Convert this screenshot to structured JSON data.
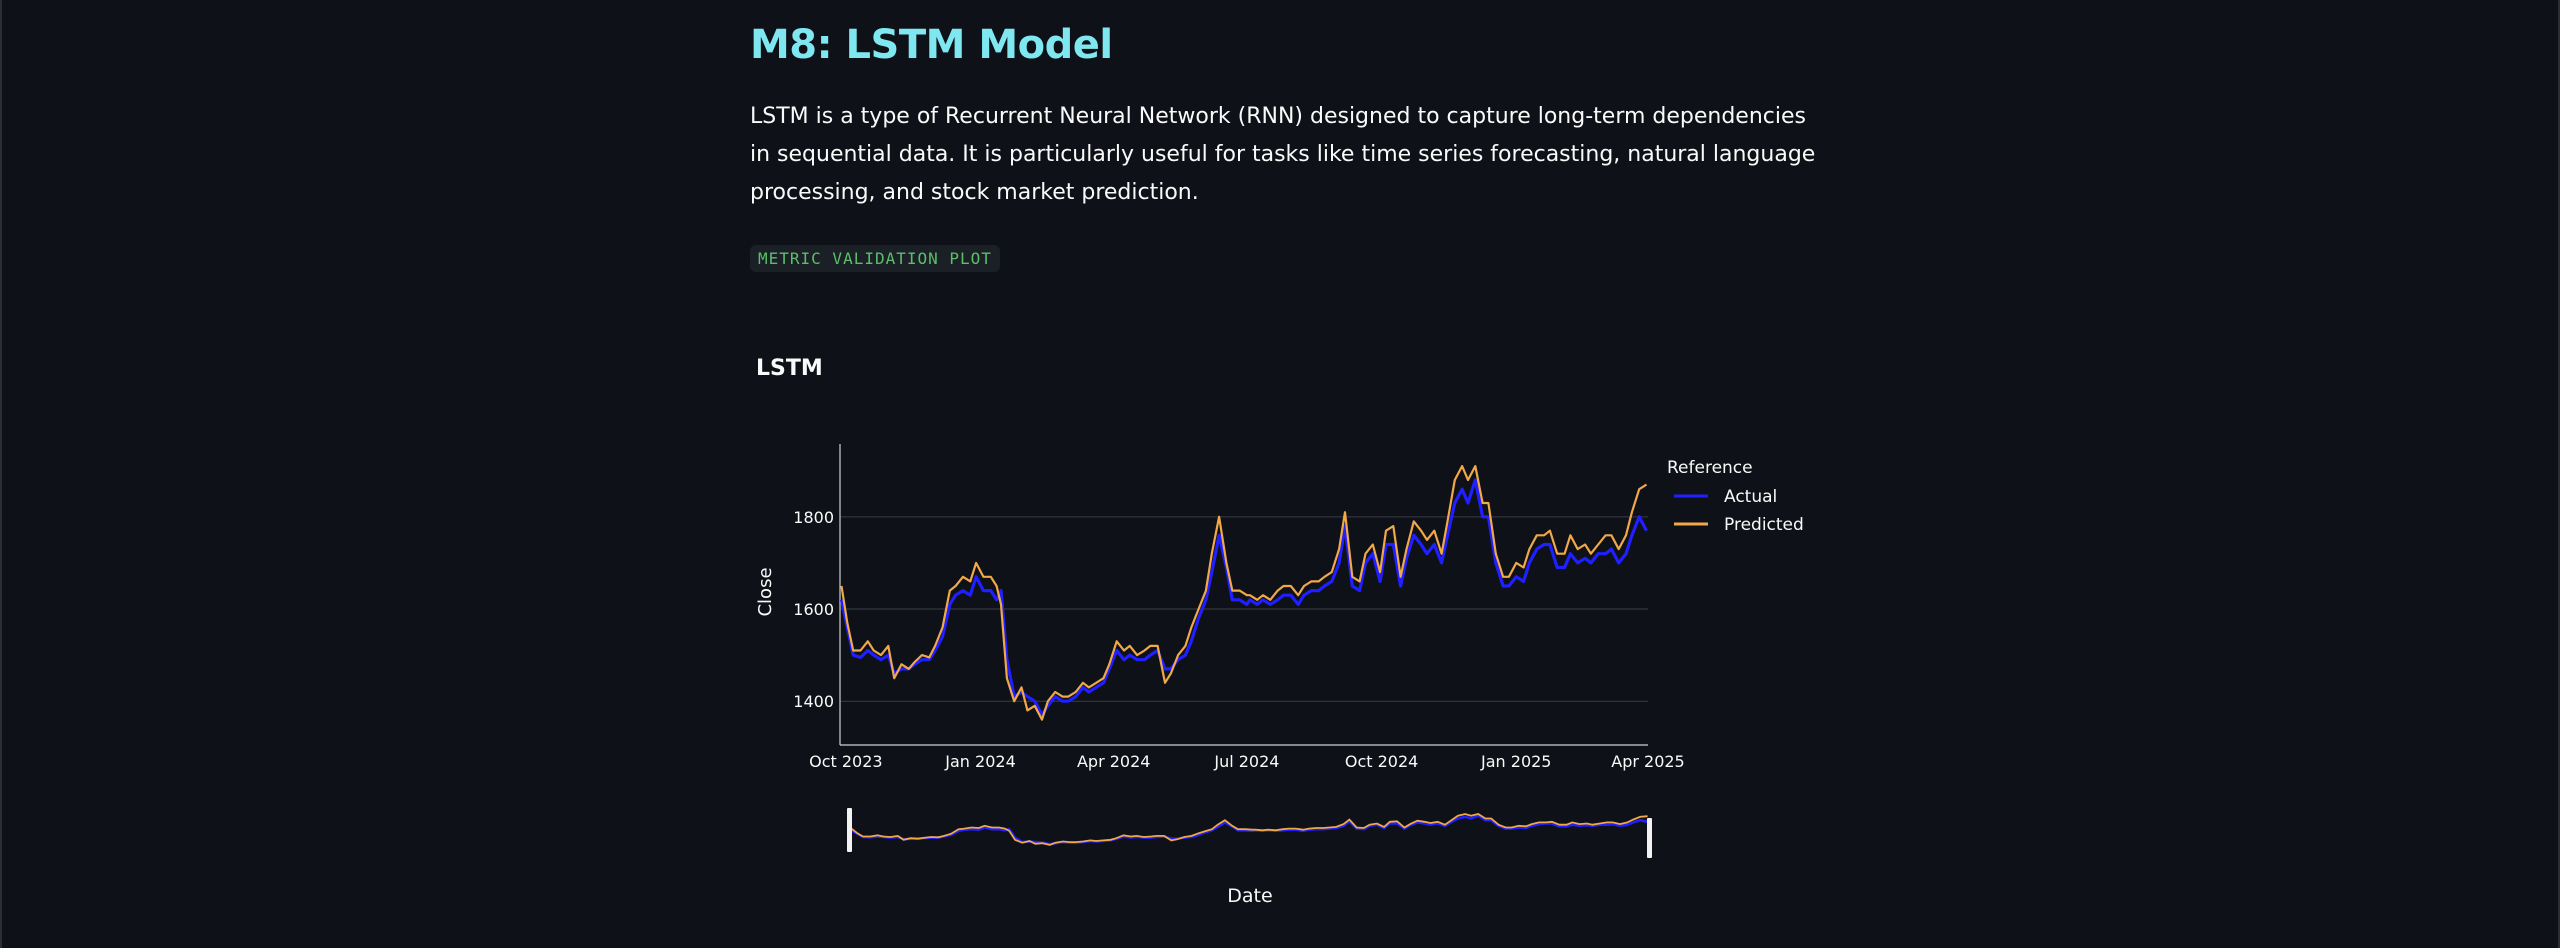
{
  "page": {
    "title": "M8: LSTM Model",
    "description": "LSTM is a type of Recurrent Neural Network (RNN) designed to capture long-term dependencies in sequential data. It is particularly useful for tasks like time series forecasting, natural language processing, and stock market prediction.",
    "code_label": "METRIC VALIDATION PLOT"
  },
  "colors": {
    "actual": "#1f1fff",
    "predicted": "#f0a848",
    "accent": "#7ee7f0"
  },
  "chart_data": {
    "type": "line",
    "title": "LSTM",
    "xlabel": "Date",
    "ylabel": "Close",
    "xlim": [
      "2023-09-27",
      "2025-04-01"
    ],
    "ylim": [
      1305,
      1945
    ],
    "yticks": [
      1400,
      1600,
      1800
    ],
    "xticks": [
      "2023-10-01",
      "2024-01-01",
      "2024-04-01",
      "2024-07-01",
      "2024-10-01",
      "2025-01-01",
      "2025-04-01"
    ],
    "xtick_labels": [
      "Oct 2023",
      "Jan 2024",
      "Apr 2024",
      "Jul 2024",
      "Oct 2024",
      "Jan 2025",
      "Apr 2025"
    ],
    "grid": true,
    "legend_title": "Reference",
    "legend_position": "right",
    "range_slider": true,
    "series": [
      {
        "name": "Actual",
        "x": [
          "2023-09-28",
          "2023-10-02",
          "2023-10-06",
          "2023-10-11",
          "2023-10-16",
          "2023-10-20",
          "2023-10-25",
          "2023-10-30",
          "2023-11-03",
          "2023-11-08",
          "2023-11-13",
          "2023-11-17",
          "2023-11-22",
          "2023-11-27",
          "2023-12-01",
          "2023-12-06",
          "2023-12-11",
          "2023-12-15",
          "2023-12-20",
          "2023-12-25",
          "2023-12-29",
          "2024-01-03",
          "2024-01-08",
          "2024-01-12",
          "2024-01-15",
          "2024-01-19",
          "2024-01-24",
          "2024-01-29",
          "2024-02-02",
          "2024-02-07",
          "2024-02-12",
          "2024-02-16",
          "2024-02-21",
          "2024-02-26",
          "2024-03-01",
          "2024-03-06",
          "2024-03-11",
          "2024-03-15",
          "2024-03-20",
          "2024-03-25",
          "2024-03-29",
          "2024-04-03",
          "2024-04-08",
          "2024-04-12",
          "2024-04-17",
          "2024-04-22",
          "2024-04-26",
          "2024-05-01",
          "2024-05-06",
          "2024-05-10",
          "2024-05-15",
          "2024-05-20",
          "2024-05-24",
          "2024-05-29",
          "2024-06-03",
          "2024-06-07",
          "2024-06-12",
          "2024-06-17",
          "2024-06-21",
          "2024-06-26",
          "2024-07-01",
          "2024-07-03",
          "2024-07-08",
          "2024-07-12",
          "2024-07-17",
          "2024-07-22",
          "2024-07-26",
          "2024-07-31",
          "2024-08-05",
          "2024-08-09",
          "2024-08-14",
          "2024-08-19",
          "2024-08-23",
          "2024-08-28",
          "2024-09-02",
          "2024-09-06",
          "2024-09-11",
          "2024-09-16",
          "2024-09-20",
          "2024-09-25",
          "2024-09-30",
          "2024-10-04",
          "2024-10-09",
          "2024-10-14",
          "2024-10-18",
          "2024-10-23",
          "2024-10-28",
          "2024-11-01",
          "2024-11-06",
          "2024-11-11",
          "2024-11-15",
          "2024-11-20",
          "2024-11-25",
          "2024-11-29",
          "2024-12-04",
          "2024-12-09",
          "2024-12-13",
          "2024-12-18",
          "2024-12-23",
          "2024-12-27",
          "2025-01-01",
          "2025-01-06",
          "2025-01-10",
          "2025-01-15",
          "2025-01-20",
          "2025-01-24",
          "2025-01-29",
          "2025-02-03",
          "2025-02-07",
          "2025-02-12",
          "2025-02-17",
          "2025-02-21",
          "2025-02-26",
          "2025-03-03",
          "2025-03-07",
          "2025-03-12",
          "2025-03-17",
          "2025-03-21",
          "2025-03-26",
          "2025-03-31"
        ],
        "y": [
          1620,
          1560,
          1500,
          1495,
          1510,
          1500,
          1490,
          1500,
          1460,
          1470,
          1470,
          1480,
          1490,
          1490,
          1510,
          1540,
          1610,
          1630,
          1640,
          1630,
          1670,
          1640,
          1640,
          1620,
          1640,
          1490,
          1410,
          1420,
          1410,
          1400,
          1370,
          1390,
          1410,
          1400,
          1400,
          1410,
          1430,
          1420,
          1430,
          1440,
          1470,
          1510,
          1490,
          1500,
          1490,
          1490,
          1500,
          1510,
          1470,
          1470,
          1490,
          1500,
          1530,
          1580,
          1620,
          1680,
          1760,
          1690,
          1620,
          1620,
          1610,
          1620,
          1610,
          1620,
          1610,
          1620,
          1630,
          1630,
          1610,
          1630,
          1640,
          1640,
          1650,
          1660,
          1700,
          1780,
          1650,
          1640,
          1700,
          1720,
          1660,
          1740,
          1740,
          1650,
          1710,
          1760,
          1740,
          1720,
          1740,
          1700,
          1760,
          1830,
          1860,
          1830,
          1880,
          1800,
          1800,
          1700,
          1650,
          1650,
          1670,
          1660,
          1700,
          1730,
          1740,
          1740,
          1690,
          1690,
          1720,
          1700,
          1710,
          1700,
          1720,
          1720,
          1730,
          1700,
          1720,
          1760,
          1800,
          1770
        ]
      },
      {
        "name": "Predicted",
        "x": [
          "2023-09-28",
          "2023-10-02",
          "2023-10-06",
          "2023-10-11",
          "2023-10-16",
          "2023-10-20",
          "2023-10-25",
          "2023-10-30",
          "2023-11-03",
          "2023-11-08",
          "2023-11-13",
          "2023-11-17",
          "2023-11-22",
          "2023-11-27",
          "2023-12-01",
          "2023-12-06",
          "2023-12-11",
          "2023-12-15",
          "2023-12-20",
          "2023-12-25",
          "2023-12-29",
          "2024-01-03",
          "2024-01-08",
          "2024-01-12",
          "2024-01-15",
          "2024-01-19",
          "2024-01-24",
          "2024-01-29",
          "2024-02-02",
          "2024-02-07",
          "2024-02-12",
          "2024-02-16",
          "2024-02-21",
          "2024-02-26",
          "2024-03-01",
          "2024-03-06",
          "2024-03-11",
          "2024-03-15",
          "2024-03-20",
          "2024-03-25",
          "2024-03-29",
          "2024-04-03",
          "2024-04-08",
          "2024-04-12",
          "2024-04-17",
          "2024-04-22",
          "2024-04-26",
          "2024-05-01",
          "2024-05-06",
          "2024-05-10",
          "2024-05-15",
          "2024-05-20",
          "2024-05-24",
          "2024-05-29",
          "2024-06-03",
          "2024-06-07",
          "2024-06-12",
          "2024-06-17",
          "2024-06-21",
          "2024-06-26",
          "2024-07-01",
          "2024-07-03",
          "2024-07-08",
          "2024-07-12",
          "2024-07-17",
          "2024-07-22",
          "2024-07-26",
          "2024-07-31",
          "2024-08-05",
          "2024-08-09",
          "2024-08-14",
          "2024-08-19",
          "2024-08-23",
          "2024-08-28",
          "2024-09-02",
          "2024-09-06",
          "2024-09-11",
          "2024-09-16",
          "2024-09-20",
          "2024-09-25",
          "2024-09-30",
          "2024-10-04",
          "2024-10-09",
          "2024-10-14",
          "2024-10-18",
          "2024-10-23",
          "2024-10-28",
          "2024-11-01",
          "2024-11-06",
          "2024-11-11",
          "2024-11-15",
          "2024-11-20",
          "2024-11-25",
          "2024-11-29",
          "2024-12-04",
          "2024-12-09",
          "2024-12-13",
          "2024-12-18",
          "2024-12-23",
          "2024-12-27",
          "2025-01-01",
          "2025-01-06",
          "2025-01-10",
          "2025-01-15",
          "2025-01-20",
          "2025-01-24",
          "2025-01-29",
          "2025-02-03",
          "2025-02-07",
          "2025-02-12",
          "2025-02-17",
          "2025-02-21",
          "2025-02-26",
          "2025-03-03",
          "2025-03-07",
          "2025-03-12",
          "2025-03-17",
          "2025-03-21",
          "2025-03-26",
          "2025-03-31"
        ],
        "y": [
          1650,
          1570,
          1510,
          1510,
          1530,
          1510,
          1500,
          1520,
          1450,
          1480,
          1470,
          1485,
          1500,
          1495,
          1520,
          1560,
          1640,
          1650,
          1670,
          1660,
          1700,
          1670,
          1670,
          1650,
          1610,
          1450,
          1400,
          1430,
          1380,
          1390,
          1360,
          1400,
          1420,
          1410,
          1410,
          1420,
          1440,
          1430,
          1440,
          1450,
          1480,
          1530,
          1510,
          1520,
          1500,
          1510,
          1520,
          1520,
          1440,
          1460,
          1500,
          1520,
          1560,
          1600,
          1640,
          1720,
          1800,
          1700,
          1640,
          1640,
          1630,
          1630,
          1620,
          1630,
          1620,
          1640,
          1650,
          1650,
          1630,
          1650,
          1660,
          1660,
          1670,
          1680,
          1730,
          1810,
          1670,
          1660,
          1720,
          1740,
          1680,
          1770,
          1780,
          1670,
          1730,
          1790,
          1770,
          1750,
          1770,
          1720,
          1790,
          1880,
          1910,
          1880,
          1910,
          1830,
          1830,
          1720,
          1670,
          1670,
          1700,
          1690,
          1730,
          1760,
          1760,
          1770,
          1720,
          1720,
          1760,
          1730,
          1740,
          1720,
          1740,
          1760,
          1760,
          1730,
          1760,
          1810,
          1860,
          1870
        ]
      }
    ]
  }
}
